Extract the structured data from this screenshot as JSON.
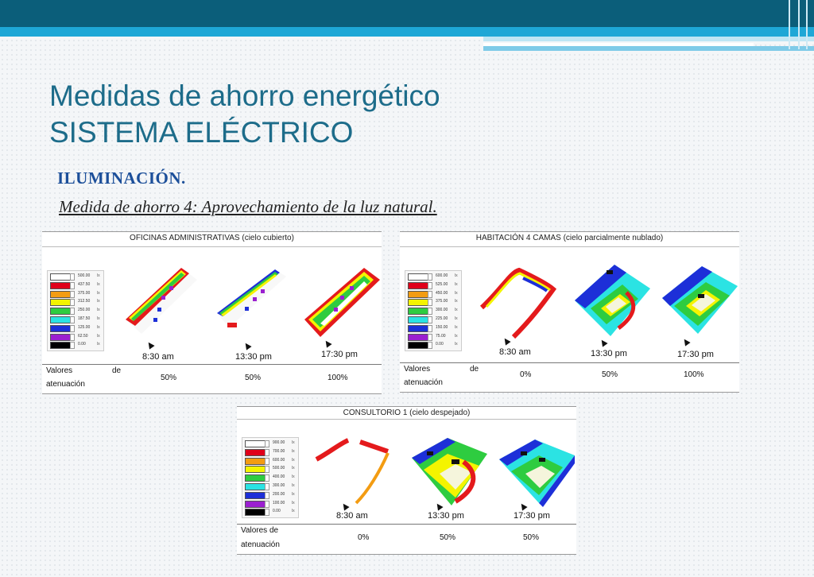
{
  "slide": {
    "title_line1": "Medidas de ahorro energético",
    "title_line2": "SISTEMA ELÉCTRICO",
    "subtitle": "ILUMINACIÓN.",
    "measure": "Medida de ahorro 4: Aprovechamiento de la luz natural."
  },
  "panels": {
    "oficinas": {
      "title": "OFICINAS ADMINISTRATIVAS (cielo cubierto)",
      "legend_values": [
        "500.00",
        "437.50",
        "375.00",
        "312.50",
        "250.00",
        "187.50",
        "125.00",
        "62.50",
        "0.00"
      ],
      "times": [
        "8:30 am",
        "13:30 pm",
        "17:30 pm"
      ],
      "att_label_1": "Valores",
      "att_label_de": "de",
      "att_label_2": "atenuación",
      "percents": [
        "50%",
        "50%",
        "100%"
      ]
    },
    "habitacion": {
      "title": "HABITACIÓN 4 CAMAS (cielo parcialmente nublado)",
      "legend_values": [
        "600.00",
        "525.00",
        "450.00",
        "375.00",
        "300.00",
        "225.00",
        "150.00",
        "75.00",
        "0.00"
      ],
      "times": [
        "8:30 am",
        "13:30 pm",
        "17:30 pm"
      ],
      "att_label_1": "Valores",
      "att_label_de": "de",
      "att_label_2": "atenuación",
      "percents": [
        "0%",
        "50%",
        "100%"
      ]
    },
    "consultorio": {
      "title": "CONSULTORIO 1 (cielo despejado)",
      "legend_values": [
        "900.00",
        "700.00",
        "600.00",
        "500.00",
        "400.00",
        "300.00",
        "200.00",
        "100.00",
        "0.00"
      ],
      "times": [
        "8:30 am",
        "13:30 pm",
        "17:30 pm"
      ],
      "att_label_1": "Valores de",
      "att_label_2": "atenuación",
      "percents": [
        "0%",
        "50%",
        "50%"
      ]
    }
  },
  "legend_unit": "lx",
  "legend_colors": [
    "#ffffff",
    "#e0001a",
    "#f39c12",
    "#f4f400",
    "#2ecc40",
    "#2be3e3",
    "#1d2fd8",
    "#9b1fd0",
    "#000000"
  ],
  "colors": {
    "title": "#1d6c8a",
    "subtitle": "#1c4f9a",
    "topbar": "#0b5e7a",
    "accent": "#1ea7d6"
  }
}
